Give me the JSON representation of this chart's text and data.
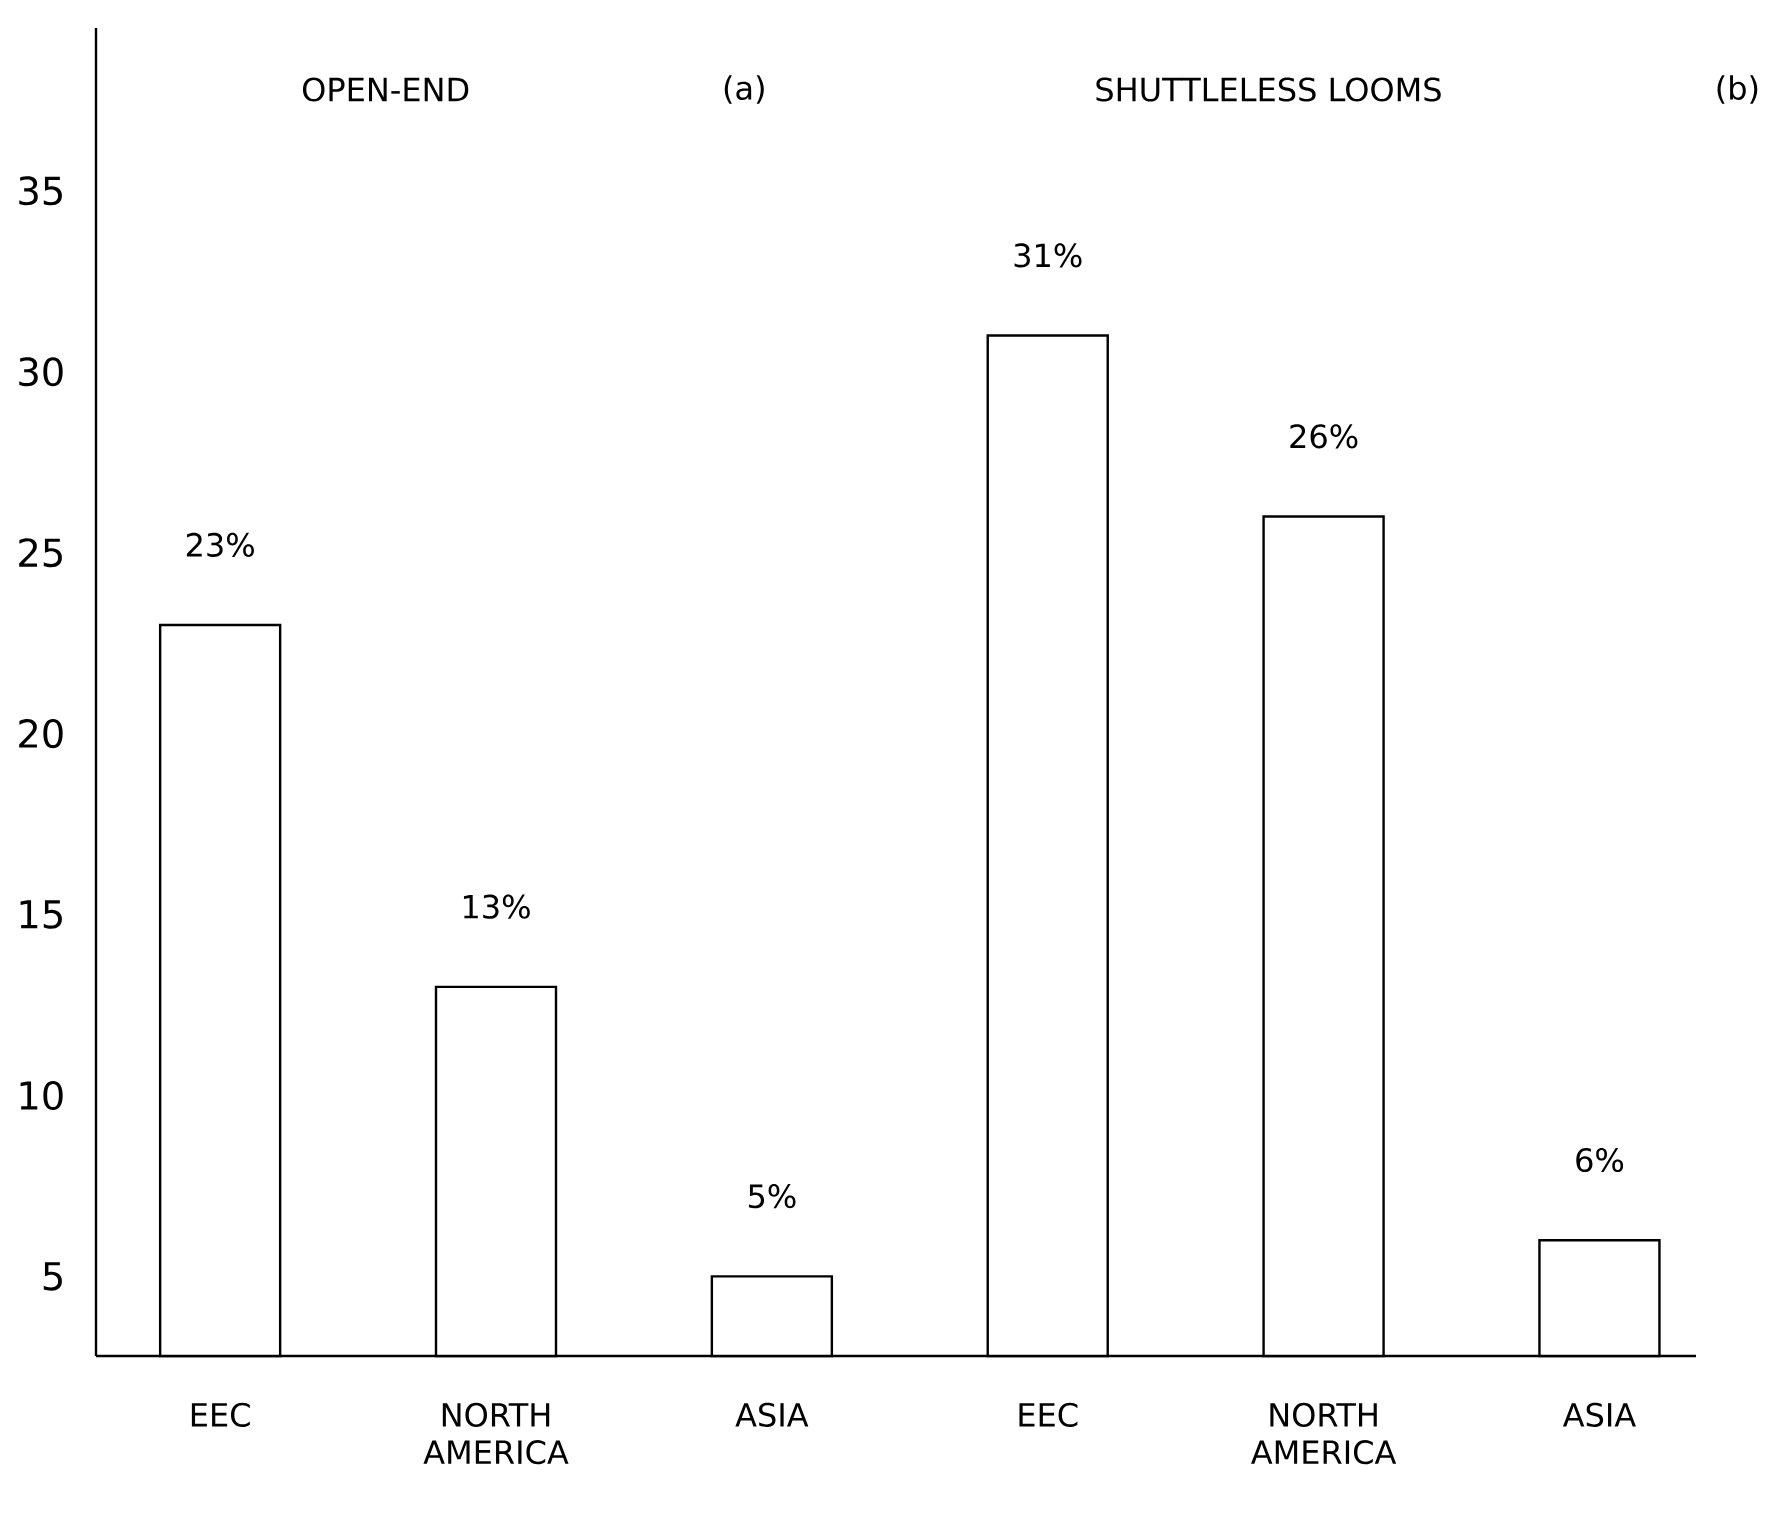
{
  "chart_data": {
    "type": "bar",
    "categories": [
      "EEC",
      "NORTH AMERICA",
      "ASIA",
      "EEC",
      "NORTH AMERICA",
      "ASIA"
    ],
    "values": [
      23,
      13,
      5,
      31,
      26,
      6
    ],
    "value_labels": [
      "23%",
      "13%",
      "5%",
      "31%",
      "26%",
      "6%"
    ],
    "color": "#ffffff",
    "ylim": [
      2.8,
      39.5
    ],
    "yticks": [
      5,
      10,
      15,
      20,
      25,
      30,
      35
    ],
    "annotations": [
      "OPEN-END",
      "(a)",
      "SHUTTLELESS LOOMS",
      "(b)"
    ],
    "grid": false
  }
}
